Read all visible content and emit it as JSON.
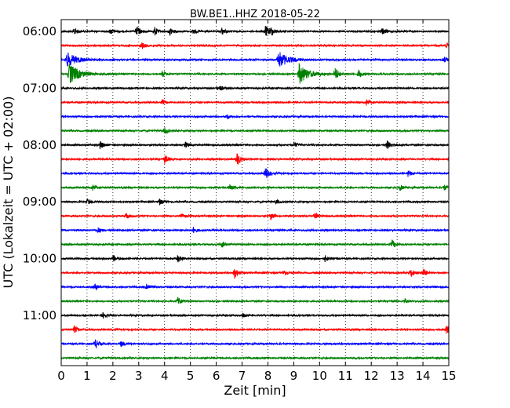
{
  "chart_data": {
    "type": "line",
    "title": "BW.BE1..HHZ 2018-05-22",
    "xlabel": "Zeit  [min]",
    "ylabel": "UTC (Lokalzeit = UTC + 02:00)",
    "xlim": [
      0,
      15
    ],
    "x_ticks": [
      "0",
      "1",
      "2",
      "3",
      "4",
      "5",
      "6",
      "7",
      "8",
      "9",
      "10",
      "11",
      "12",
      "13",
      "14",
      "15"
    ],
    "y_ticks": [
      "06:00",
      "07:00",
      "08:00",
      "09:00",
      "10:00",
      "11:00"
    ],
    "grid": {
      "vertical": true,
      "style": "dotted"
    },
    "trace_interval_minutes": 15,
    "colors": [
      "#000000",
      "#ff0000",
      "#0000ff",
      "#008000"
    ],
    "series": [
      {
        "time": "06:00",
        "color": "#000000",
        "events": [
          {
            "t": 0.5,
            "a": 5
          },
          {
            "t": 1.9,
            "a": 4
          },
          {
            "t": 2.9,
            "a": 8
          },
          {
            "t": 3.6,
            "a": 6
          },
          {
            "t": 4.2,
            "a": 5
          },
          {
            "t": 5.1,
            "a": 4
          },
          {
            "t": 6.2,
            "a": 5
          },
          {
            "t": 7.9,
            "a": 8
          },
          {
            "t": 8.1,
            "a": 6
          },
          {
            "t": 12.4,
            "a": 5
          }
        ]
      },
      {
        "time": "06:15",
        "color": "#ff0000",
        "events": [
          {
            "t": 3.1,
            "a": 5
          },
          {
            "t": 14.9,
            "a": 3
          }
        ]
      },
      {
        "time": "06:30",
        "color": "#0000ff",
        "events": [
          {
            "t": 0.2,
            "a": 10
          },
          {
            "t": 8.4,
            "a": 11
          },
          {
            "t": 14.8,
            "a": 4
          }
        ]
      },
      {
        "time": "06:45",
        "color": "#008000",
        "events": [
          {
            "t": 0.3,
            "a": 14
          },
          {
            "t": 3.9,
            "a": 4
          },
          {
            "t": 9.2,
            "a": 13
          },
          {
            "t": 10.6,
            "a": 9
          },
          {
            "t": 11.5,
            "a": 6
          }
        ]
      },
      {
        "time": "07:00",
        "color": "#000000",
        "events": [
          {
            "t": 6.1,
            "a": 5
          }
        ]
      },
      {
        "time": "07:15",
        "color": "#ff0000",
        "events": [
          {
            "t": 3.9,
            "a": 4
          },
          {
            "t": 11.8,
            "a": 5
          }
        ]
      },
      {
        "time": "07:30",
        "color": "#0000ff",
        "events": [
          {
            "t": 6.4,
            "a": 3
          }
        ]
      },
      {
        "time": "07:45",
        "color": "#008000",
        "events": [
          {
            "t": 4.0,
            "a": 4
          },
          {
            "t": 15.0,
            "a": 3
          }
        ]
      },
      {
        "time": "08:00",
        "color": "#000000",
        "events": [
          {
            "t": 1.5,
            "a": 5
          },
          {
            "t": 4.8,
            "a": 4
          },
          {
            "t": 9.0,
            "a": 4
          },
          {
            "t": 12.6,
            "a": 6
          }
        ]
      },
      {
        "time": "08:15",
        "color": "#ff0000",
        "events": [
          {
            "t": 4.0,
            "a": 6
          },
          {
            "t": 6.8,
            "a": 9
          }
        ]
      },
      {
        "time": "08:30",
        "color": "#0000ff",
        "events": [
          {
            "t": 7.9,
            "a": 8
          },
          {
            "t": 13.4,
            "a": 5
          }
        ]
      },
      {
        "time": "08:45",
        "color": "#008000",
        "events": [
          {
            "t": 1.2,
            "a": 5
          },
          {
            "t": 6.5,
            "a": 4
          },
          {
            "t": 13.1,
            "a": 4
          },
          {
            "t": 14.8,
            "a": 4
          }
        ]
      },
      {
        "time": "09:00",
        "color": "#000000",
        "events": [
          {
            "t": 1.0,
            "a": 4
          },
          {
            "t": 3.8,
            "a": 4
          },
          {
            "t": 8.3,
            "a": 3
          }
        ]
      },
      {
        "time": "09:15",
        "color": "#ff0000",
        "events": [
          {
            "t": 2.5,
            "a": 4
          },
          {
            "t": 4.6,
            "a": 4
          },
          {
            "t": 8.1,
            "a": 5
          },
          {
            "t": 9.8,
            "a": 4
          }
        ]
      },
      {
        "time": "09:30",
        "color": "#0000ff",
        "events": [
          {
            "t": 1.4,
            "a": 4
          },
          {
            "t": 5.1,
            "a": 4
          }
        ]
      },
      {
        "time": "09:45",
        "color": "#008000",
        "events": [
          {
            "t": 6.2,
            "a": 4
          },
          {
            "t": 12.8,
            "a": 6
          }
        ]
      },
      {
        "time": "10:00",
        "color": "#000000",
        "events": [
          {
            "t": 2.0,
            "a": 4
          },
          {
            "t": 4.5,
            "a": 5
          },
          {
            "t": 10.2,
            "a": 4
          }
        ]
      },
      {
        "time": "10:15",
        "color": "#ff0000",
        "events": [
          {
            "t": 6.7,
            "a": 8
          },
          {
            "t": 8.6,
            "a": 4
          },
          {
            "t": 13.5,
            "a": 7
          },
          {
            "t": 14.0,
            "a": 6
          }
        ]
      },
      {
        "time": "10:30",
        "color": "#0000ff",
        "events": [
          {
            "t": 1.3,
            "a": 4
          },
          {
            "t": 3.3,
            "a": 5
          }
        ]
      },
      {
        "time": "10:45",
        "color": "#008000",
        "events": [
          {
            "t": 4.5,
            "a": 6
          },
          {
            "t": 13.3,
            "a": 3
          }
        ]
      },
      {
        "time": "11:00",
        "color": "#000000",
        "events": [
          {
            "t": 1.6,
            "a": 4
          },
          {
            "t": 7.0,
            "a": 3
          }
        ]
      },
      {
        "time": "11:15",
        "color": "#ff0000",
        "events": [
          {
            "t": 0.5,
            "a": 5
          },
          {
            "t": 14.9,
            "a": 5
          }
        ]
      },
      {
        "time": "11:30",
        "color": "#0000ff",
        "events": [
          {
            "t": 1.3,
            "a": 7
          },
          {
            "t": 2.3,
            "a": 4
          }
        ]
      },
      {
        "time": "11:45",
        "color": "#008000",
        "events": []
      }
    ]
  }
}
